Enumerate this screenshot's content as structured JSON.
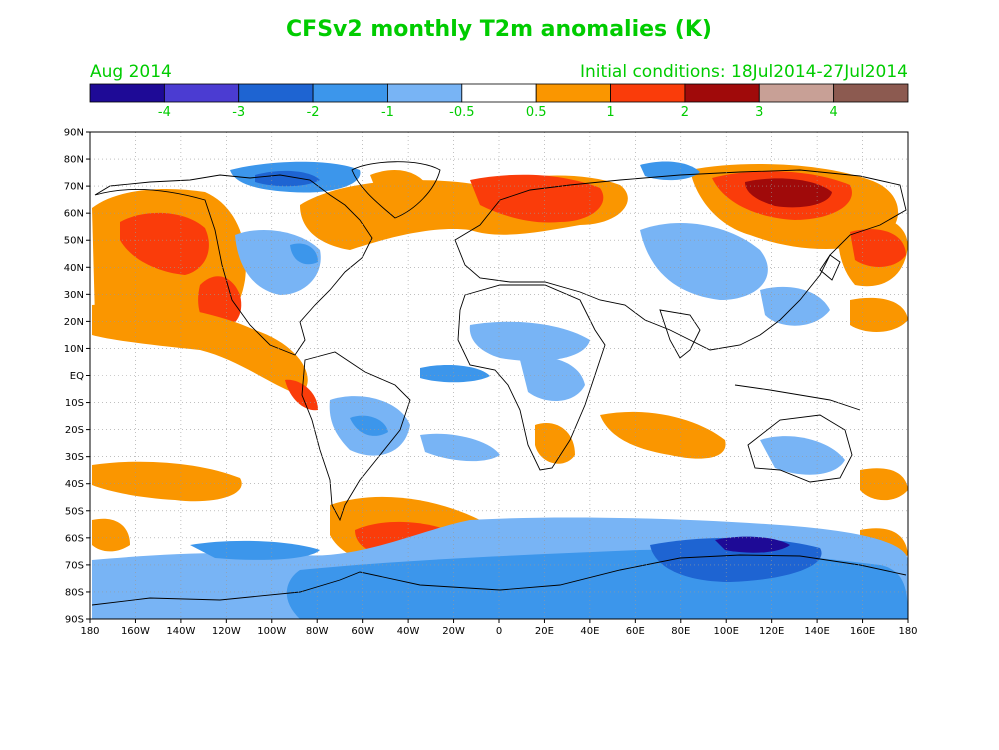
{
  "title": "CFSv2 monthly T2m anomalies (K)",
  "month": "Aug 2014",
  "initial_conditions": "Initial conditions: 18Jul2014-27Jul2014",
  "label_color": "#00cc00",
  "colorbar": {
    "labels": [
      "-4",
      "-3",
      "-2",
      "-1",
      "-0.5",
      "0.5",
      "1",
      "2",
      "3",
      "4"
    ],
    "colors": [
      "#1e0a96",
      "#4b3cd2",
      "#1e64d2",
      "#3c96eb",
      "#78b4f5",
      "#ffffff",
      "#fa9600",
      "#fa3c0a",
      "#a00a0a",
      "#c8a096",
      "#8c5a50"
    ]
  },
  "map": {
    "lat_ticks": [
      "90N",
      "80N",
      "70N",
      "60N",
      "50N",
      "40N",
      "30N",
      "20N",
      "10N",
      "EQ",
      "10S",
      "20S",
      "30S",
      "40S",
      "50S",
      "60S",
      "70S",
      "80S",
      "90S"
    ],
    "lon_ticks": [
      "180",
      "160W",
      "140W",
      "120W",
      "100W",
      "80W",
      "60W",
      "40W",
      "20W",
      "0",
      "20E",
      "40E",
      "60E",
      "80E",
      "100E",
      "120E",
      "140E",
      "160E",
      "180"
    ]
  }
}
